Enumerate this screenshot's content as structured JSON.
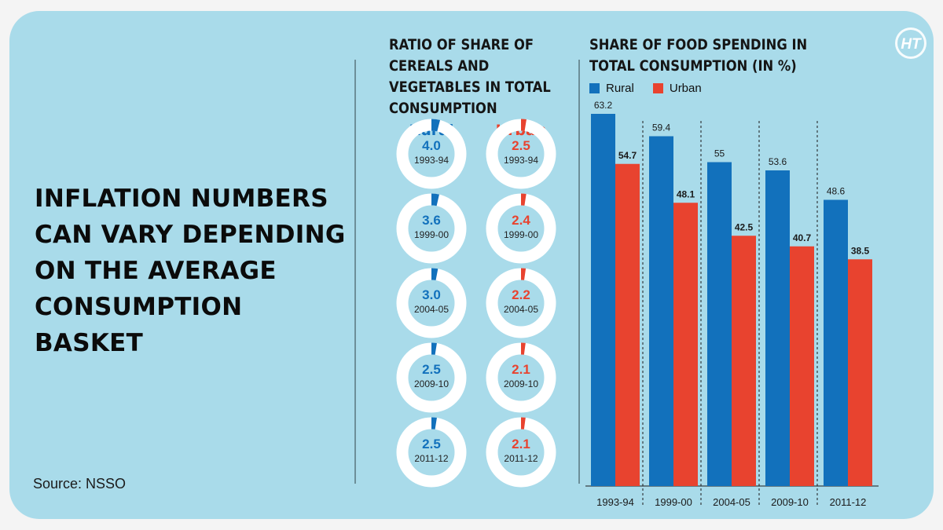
{
  "headline": "INFLATION NUMBERS CAN VARY DEPENDING ON THE AVERAGE CONSUMPTION BASKET",
  "source": "Source: NSSO",
  "logo_text": "HT",
  "colors": {
    "rural": "#1271bc",
    "urban": "#e8432f",
    "background": "#a9dbea",
    "donut_track": "#ffffff"
  },
  "ratio_panel": {
    "title_lines": [
      "RATIO OF SHARE OF",
      "CEREALS AND",
      "VEGETABLES IN TOTAL",
      "CONSUMPTION"
    ],
    "rural_label": "Rural",
    "urban_label": "Urban",
    "rural": [
      {
        "value": "4.0",
        "year": "1993-94"
      },
      {
        "value": "3.6",
        "year": "1999-00"
      },
      {
        "value": "3.0",
        "year": "2004-05"
      },
      {
        "value": "2.5",
        "year": "2009-10"
      },
      {
        "value": "2.5",
        "year": "2011-12"
      }
    ],
    "urban": [
      {
        "value": "2.5",
        "year": "1993-94"
      },
      {
        "value": "2.4",
        "year": "1999-00"
      },
      {
        "value": "2.2",
        "year": "2004-05"
      },
      {
        "value": "2.1",
        "year": "2009-10"
      },
      {
        "value": "2.1",
        "year": "2011-12"
      }
    ]
  },
  "chart_data": {
    "type": "bar",
    "title": "SHARE OF FOOD SPENDING IN TOTAL CONSUMPTION (IN %)",
    "title_lines": [
      "SHARE OF FOOD SPENDING IN",
      "TOTAL CONSUMPTION (IN %)"
    ],
    "categories": [
      "1993-94",
      "1999-00",
      "2004-05",
      "2009-10",
      "2011-12"
    ],
    "series": [
      {
        "name": "Rural",
        "values": [
          63.2,
          59.4,
          55,
          53.6,
          48.6
        ],
        "labels": [
          "63.2",
          "59.4",
          "55",
          "53.6",
          "48.6"
        ]
      },
      {
        "name": "Urban",
        "values": [
          54.7,
          48.1,
          42.5,
          40.7,
          38.5
        ],
        "labels": [
          "54.7",
          "48.1",
          "42.5",
          "40.7",
          "38.5"
        ]
      }
    ],
    "ylim": [
      0,
      63.2
    ],
    "legend_position": "top-left",
    "grid": false,
    "separators": "dashed-vertical"
  }
}
